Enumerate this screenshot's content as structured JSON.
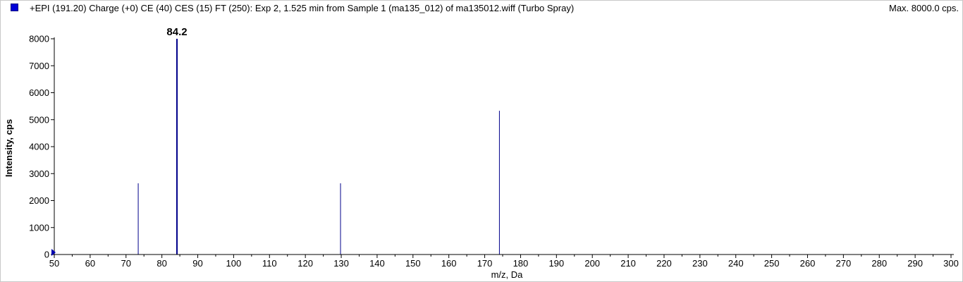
{
  "header": {
    "title": "+EPI (191.20) Charge (+0) CE (40) CES (15) FT (250): Exp 2, 1.525 min from Sample 1 (ma135_012) of ma135012.wiff (Turbo Spray)",
    "max_label": "Max. 8000.0 cps."
  },
  "colors": {
    "series": "#00008b",
    "legend_swatch": "#0000d8",
    "axis": "#000000"
  },
  "chart_data": {
    "type": "bar",
    "title": "",
    "xlabel": "m/z, Da",
    "ylabel": "Intensity, cps",
    "xlim": [
      50,
      300
    ],
    "ylim": [
      0,
      8000
    ],
    "xticks": [
      50,
      60,
      70,
      80,
      90,
      100,
      110,
      120,
      130,
      140,
      150,
      160,
      170,
      180,
      190,
      200,
      210,
      220,
      230,
      240,
      250,
      260,
      270,
      280,
      290,
      300
    ],
    "yticks": [
      0,
      1000,
      2000,
      3000,
      4000,
      5000,
      6000,
      7000,
      8000
    ],
    "grid": false,
    "legend": "top-left",
    "series": [
      {
        "peaks": [
          {
            "x": 73.4,
            "y": 2640
          },
          {
            "x": 84.2,
            "y": 8000,
            "label": "84.2"
          },
          {
            "x": 129.8,
            "y": 2640
          },
          {
            "x": 174.1,
            "y": 5330
          }
        ]
      }
    ]
  }
}
